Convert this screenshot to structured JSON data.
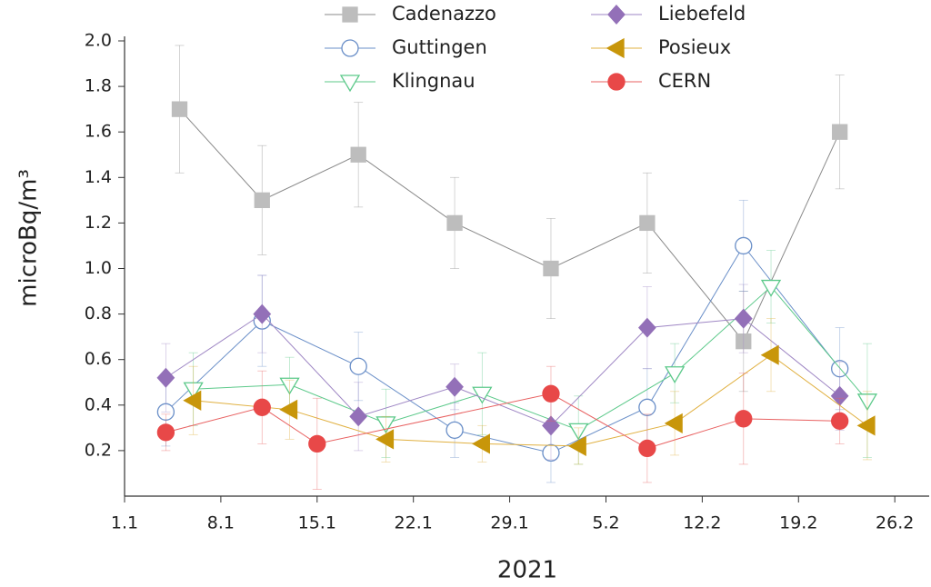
{
  "chart_data": {
    "type": "line",
    "x_label": "2021",
    "y_label": "microBq/m³",
    "xlim": [
      1,
      59.5
    ],
    "ylim": [
      0,
      2.0
    ],
    "xticks": [
      {
        "value": 1,
        "label": "1.1"
      },
      {
        "value": 8,
        "label": "8.1"
      },
      {
        "value": 15,
        "label": "15.1"
      },
      {
        "value": 22,
        "label": "22.1"
      },
      {
        "value": 29,
        "label": "29.1"
      },
      {
        "value": 36,
        "label": "5.2"
      },
      {
        "value": 43,
        "label": "12.2"
      },
      {
        "value": 50,
        "label": "19.2"
      },
      {
        "value": 57,
        "label": "26.2"
      }
    ],
    "yticks": [
      0.2,
      0.4,
      0.6,
      0.8,
      {
        "value": 1.0,
        "label": "1.0"
      },
      1.2,
      1.4,
      1.6,
      1.8,
      {
        "value": 2.0,
        "label": "2.0"
      }
    ],
    "series": [
      {
        "name": "Cadenazzo",
        "color": "#bdbdbd",
        "line_color": "#8a8a8a",
        "marker": "square",
        "filled": true,
        "x": [
          5,
          11,
          18,
          25,
          32,
          39,
          46,
          53
        ],
        "values": [
          1.7,
          1.3,
          1.5,
          1.2,
          1.0,
          1.2,
          0.68,
          1.6
        ],
        "errors": [
          0.28,
          0.24,
          0.23,
          0.2,
          0.22,
          0.22,
          0.22,
          0.25
        ]
      },
      {
        "name": "Guttingen",
        "color": "#6a8fc8",
        "line_color": "#6a8fc8",
        "marker": "circle",
        "filled": false,
        "x": [
          4,
          11,
          18,
          25,
          32,
          39,
          46,
          53
        ],
        "values": [
          0.37,
          0.77,
          0.57,
          0.29,
          0.19,
          0.39,
          1.1,
          0.56
        ],
        "errors": [
          0.15,
          0.2,
          0.15,
          0.12,
          0.13,
          0.17,
          0.2,
          0.18
        ]
      },
      {
        "name": "Klingnau",
        "color": "#5cc98a",
        "line_color": "#5cc98a",
        "marker": "tri-down",
        "filled": false,
        "x": [
          6,
          13,
          20,
          27,
          34,
          41,
          48,
          55
        ],
        "values": [
          0.47,
          0.49,
          0.32,
          0.45,
          0.29,
          0.54,
          0.92,
          0.42
        ],
        "errors": [
          0.16,
          0.12,
          0.15,
          0.18,
          0.15,
          0.13,
          0.16,
          0.25
        ]
      },
      {
        "name": "Liebefeld",
        "color": "#9370b8",
        "line_color": "#9e86c4",
        "marker": "diamond",
        "filled": true,
        "x": [
          4,
          11,
          18,
          25,
          32,
          39,
          46,
          53
        ],
        "values": [
          0.52,
          0.8,
          0.35,
          0.48,
          0.31,
          0.74,
          0.78,
          0.44
        ],
        "errors": [
          0.15,
          0.17,
          0.15,
          0.1,
          0.15,
          0.18,
          0.15,
          0.15
        ]
      },
      {
        "name": "Posieux",
        "color": "#c8960a",
        "line_color": "#e0b040",
        "marker": "tri-left",
        "filled": true,
        "x": [
          6,
          13,
          20,
          27,
          34,
          41,
          48,
          55
        ],
        "values": [
          0.42,
          0.38,
          0.25,
          0.23,
          0.22,
          0.32,
          0.62,
          0.31
        ],
        "errors": [
          0.15,
          0.13,
          0.1,
          0.08,
          0.08,
          0.14,
          0.16,
          0.15
        ]
      },
      {
        "name": "CERN",
        "color": "#e84848",
        "line_color": "#e86060",
        "marker": "circle",
        "filled": true,
        "x": [
          4,
          11,
          15,
          32,
          39,
          46,
          53
        ],
        "values": [
          0.28,
          0.39,
          0.23,
          0.45,
          0.21,
          0.34,
          0.33
        ],
        "errors": [
          0.08,
          0.16,
          0.2,
          0.12,
          0.15,
          0.2,
          0.1
        ]
      }
    ]
  }
}
